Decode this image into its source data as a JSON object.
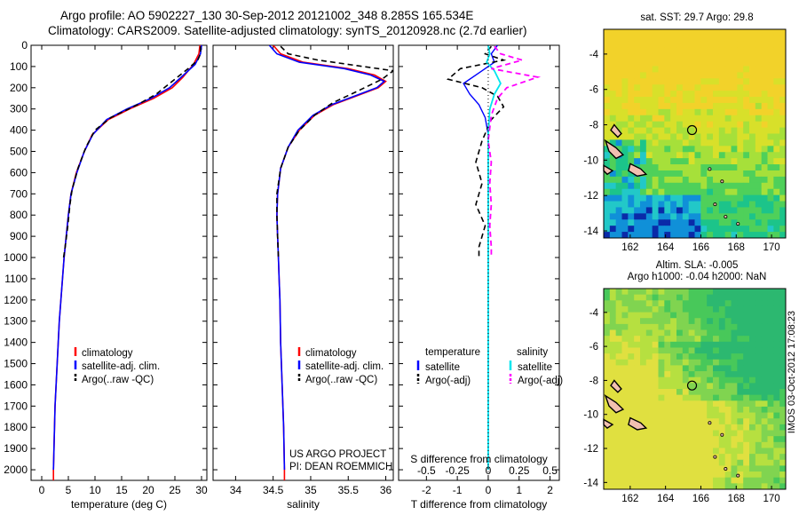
{
  "titles": {
    "line1": "Argo profile: AO 5902227_130 30-Sep-2012 20121002_348 8.285S 165.534E",
    "line2": "Climatology: CARS2009. Satellite-adjusted climatology: synTS_20120928.nc (2.7d earlier)"
  },
  "map_titles": {
    "sst": "sat. SST: 29.7 Argo: 29.8",
    "sla1": "Altim. SLA: -0.005",
    "sla2": "Argo h1000: -0.04 h2000: NaN"
  },
  "stamp": "IMOS 03-Oct-2012 17:08:23",
  "colors": {
    "clim": "#ff0000",
    "sat": "#0000ff",
    "argo": "#000000",
    "sat_s": "#00e5ee",
    "argo_s": "#ff00ff"
  },
  "chart_data": [
    {
      "type": "line",
      "xlabel": "temperature (deg C)",
      "ylabel": "",
      "xlim": [
        -2,
        31
      ],
      "ylim": [
        2050,
        0
      ],
      "x_ticks": [
        0,
        5,
        10,
        15,
        20,
        25,
        30
      ],
      "y_ticks": [
        0,
        100,
        200,
        300,
        400,
        500,
        600,
        700,
        800,
        900,
        1000,
        1100,
        1200,
        1300,
        1400,
        1500,
        1600,
        1700,
        1800,
        1900,
        2000
      ],
      "legend": [
        "climatology",
        "satellite-adj. clim.",
        "Argo(..raw -QC)"
      ],
      "series": [
        {
          "name": "climatology",
          "points": [
            [
              29.7,
              0
            ],
            [
              29.5,
              40
            ],
            [
              28.5,
              90
            ],
            [
              26.5,
              150
            ],
            [
              24.5,
              200
            ],
            [
              21,
              250
            ],
            [
              16.5,
              300
            ],
            [
              12.5,
              350
            ],
            [
              9.5,
              420
            ],
            [
              8,
              500
            ],
            [
              6.5,
              600
            ],
            [
              5.5,
              700
            ],
            [
              5,
              800
            ],
            [
              4.6,
              900
            ],
            [
              4.2,
              1000
            ],
            [
              3.9,
              1100
            ],
            [
              3.6,
              1200
            ],
            [
              3.3,
              1300
            ],
            [
              3.1,
              1400
            ],
            [
              2.9,
              1500
            ],
            [
              2.7,
              1600
            ],
            [
              2.5,
              1700
            ],
            [
              2.4,
              1800
            ],
            [
              2.3,
              1900
            ],
            [
              2.2,
              2000
            ],
            [
              2.2,
              2050
            ]
          ]
        },
        {
          "name": "satellite-adj. clim.",
          "points": [
            [
              30,
              0
            ],
            [
              29.8,
              40
            ],
            [
              28.8,
              90
            ],
            [
              26.2,
              150
            ],
            [
              24,
              200
            ],
            [
              20.5,
              250
            ],
            [
              16,
              300
            ],
            [
              12.2,
              350
            ],
            [
              9.6,
              420
            ],
            [
              8,
              500
            ],
            [
              6.6,
              600
            ],
            [
              5.5,
              700
            ],
            [
              5,
              800
            ],
            [
              4.6,
              900
            ],
            [
              4.2,
              1000
            ],
            [
              3.9,
              1100
            ],
            [
              3.6,
              1200
            ],
            [
              3.3,
              1300
            ],
            [
              3.1,
              1400
            ],
            [
              2.9,
              1500
            ],
            [
              2.7,
              1600
            ],
            [
              2.5,
              1700
            ],
            [
              2.4,
              1800
            ],
            [
              2.3,
              1900
            ],
            [
              2.2,
              2000
            ]
          ]
        },
        {
          "name": "Argo(..raw -QC)",
          "points": [
            [
              29.8,
              5
            ],
            [
              29.8,
              40
            ],
            [
              29.3,
              70
            ],
            [
              27.5,
              110
            ],
            [
              24.5,
              170
            ],
            [
              21.5,
              230
            ],
            [
              18,
              280
            ],
            [
              13,
              340
            ],
            [
              10,
              400
            ],
            [
              8.3,
              480
            ],
            [
              6.8,
              580
            ],
            [
              5.7,
              680
            ],
            [
              5.3,
              750
            ],
            [
              4.9,
              850
            ],
            [
              4.4,
              950
            ],
            [
              4.1,
              1000
            ]
          ]
        }
      ]
    },
    {
      "type": "line",
      "xlabel": "salinity",
      "ylabel": "",
      "xlim": [
        33.7,
        36.1
      ],
      "ylim": [
        2050,
        0
      ],
      "x_ticks": [
        34,
        34.5,
        35,
        35.5,
        36
      ],
      "legend": [
        "climatology",
        "satellite-adj. clim.",
        "Argo(..raw -QC)"
      ],
      "annotation": [
        "US ARGO PROJECT",
        "PI: DEAN ROEMMICH"
      ],
      "series": [
        {
          "name": "climatology",
          "points": [
            [
              34.5,
              0
            ],
            [
              34.6,
              40
            ],
            [
              34.9,
              80
            ],
            [
              35.5,
              110
            ],
            [
              35.85,
              140
            ],
            [
              36,
              170
            ],
            [
              35.9,
              200
            ],
            [
              35.6,
              240
            ],
            [
              35.3,
              280
            ],
            [
              35.05,
              330
            ],
            [
              34.85,
              400
            ],
            [
              34.7,
              480
            ],
            [
              34.6,
              580
            ],
            [
              34.56,
              700
            ],
            [
              34.55,
              800
            ],
            [
              34.56,
              900
            ],
            [
              34.57,
              1000
            ],
            [
              34.58,
              1100
            ],
            [
              34.59,
              1200
            ],
            [
              34.6,
              1400
            ],
            [
              34.62,
              1600
            ],
            [
              34.64,
              1800
            ],
            [
              34.65,
              2000
            ],
            [
              34.65,
              2050
            ]
          ]
        },
        {
          "name": "satellite-adj. clim.",
          "points": [
            [
              34.45,
              0
            ],
            [
              34.55,
              40
            ],
            [
              34.85,
              80
            ],
            [
              35.45,
              110
            ],
            [
              35.8,
              140
            ],
            [
              35.98,
              170
            ],
            [
              35.88,
              200
            ],
            [
              35.58,
              240
            ],
            [
              35.28,
              280
            ],
            [
              35.03,
              330
            ],
            [
              34.83,
              400
            ],
            [
              34.7,
              480
            ],
            [
              34.6,
              580
            ],
            [
              34.56,
              700
            ],
            [
              34.55,
              800
            ],
            [
              34.56,
              900
            ],
            [
              34.57,
              1000
            ],
            [
              34.58,
              1100
            ],
            [
              34.59,
              1200
            ],
            [
              34.6,
              1400
            ],
            [
              34.62,
              1600
            ],
            [
              34.64,
              1800
            ],
            [
              34.65,
              2000
            ]
          ]
        },
        {
          "name": "Argo(..raw -QC)",
          "points": [
            [
              34.6,
              5
            ],
            [
              34.7,
              40
            ],
            [
              35.1,
              70
            ],
            [
              35.7,
              100
            ],
            [
              36.1,
              120
            ],
            [
              35.95,
              160
            ],
            [
              35.6,
              220
            ],
            [
              35.3,
              270
            ],
            [
              35.05,
              330
            ],
            [
              34.85,
              400
            ],
            [
              34.7,
              480
            ],
            [
              34.6,
              580
            ],
            [
              34.55,
              700
            ],
            [
              34.55,
              800
            ],
            [
              34.56,
              900
            ],
            [
              34.57,
              1000
            ]
          ]
        }
      ]
    },
    {
      "type": "line",
      "xlabel": "T difference from climatology",
      "xlabel2": "S difference from climatology",
      "xlim": [
        -2.9,
        2.3
      ],
      "ylim": [
        2050,
        0
      ],
      "x_ticks": [
        -2,
        -1,
        0,
        1,
        2
      ],
      "x2_ticks": [
        -0.5,
        -0.25,
        0,
        0.25,
        0.5
      ],
      "legend_headers": [
        "temperature",
        "salinity"
      ],
      "legend": [
        "satellite",
        "Argo(-adj)",
        "satellite",
        "Argo(-adj)"
      ],
      "series": [
        {
          "name": "satellite",
          "points": [
            [
              0.3,
              0
            ],
            [
              0.1,
              40
            ],
            [
              0.2,
              80
            ],
            [
              -0.2,
              120
            ],
            [
              -0.8,
              180
            ],
            [
              -0.6,
              230
            ],
            [
              -0.3,
              280
            ],
            [
              -0.1,
              340
            ],
            [
              0,
              420
            ],
            [
              0,
              600
            ],
            [
              0,
              800
            ],
            [
              0,
              1000
            ],
            [
              0,
              1200
            ],
            [
              0,
              1400
            ],
            [
              0,
              1600
            ],
            [
              0,
              1800
            ],
            [
              0,
              2000
            ]
          ]
        },
        {
          "name": "Argo(-adj)",
          "points": [
            [
              0.1,
              5
            ],
            [
              -0.1,
              40
            ],
            [
              0.5,
              70
            ],
            [
              -0.9,
              110
            ],
            [
              -1.3,
              160
            ],
            [
              -0.2,
              200
            ],
            [
              0.3,
              240
            ],
            [
              0.5,
              290
            ],
            [
              0.1,
              350
            ],
            [
              -0.2,
              450
            ],
            [
              -0.4,
              550
            ],
            [
              -0.2,
              650
            ],
            [
              -0.4,
              750
            ],
            [
              -0.1,
              850
            ],
            [
              -0.3,
              950
            ],
            [
              -0.3,
              1000
            ]
          ]
        },
        {
          "name": "satellite",
          "points": [
            [
              0,
              0
            ],
            [
              0.05,
              40
            ],
            [
              -0.05,
              80
            ],
            [
              0.2,
              120
            ],
            [
              0.4,
              180
            ],
            [
              0.2,
              230
            ],
            [
              0.05,
              300
            ],
            [
              0,
              420
            ],
            [
              0,
              600
            ],
            [
              0,
              800
            ],
            [
              0,
              1000
            ],
            [
              0,
              1200
            ],
            [
              0,
              1400
            ],
            [
              0,
              1600
            ],
            [
              0,
              1800
            ],
            [
              0,
              2000
            ]
          ]
        },
        {
          "name": "Argo(-adj)",
          "points": [
            [
              0.2,
              5
            ],
            [
              0.4,
              40
            ],
            [
              1.1,
              70
            ],
            [
              0.1,
              110
            ],
            [
              1.6,
              150
            ],
            [
              0.6,
              200
            ],
            [
              0.3,
              250
            ],
            [
              0.1,
              330
            ],
            [
              0,
              450
            ],
            [
              0.1,
              550
            ],
            [
              0.05,
              650
            ],
            [
              0.1,
              750
            ],
            [
              0.05,
              850
            ],
            [
              0.1,
              950
            ],
            [
              0.1,
              1000
            ]
          ]
        }
      ]
    },
    {
      "type": "heatmap",
      "title": "sat. SST: 29.7 Argo: 29.8",
      "xlim": [
        160.5,
        170.8
      ],
      "ylim": [
        -14.4,
        -2.6
      ],
      "x_ticks": [
        162,
        164,
        166,
        168,
        170
      ],
      "y_ticks": [
        -4,
        -6,
        -8,
        -10,
        -12,
        -14
      ],
      "marker": [
        165.5,
        -8.3
      ]
    },
    {
      "type": "heatmap",
      "title": "Altim. SLA: -0.005",
      "xlim": [
        160.5,
        170.8
      ],
      "ylim": [
        -14.4,
        -2.6
      ],
      "x_ticks": [
        162,
        164,
        166,
        168,
        170
      ],
      "y_ticks": [
        -4,
        -6,
        -8,
        -10,
        -12,
        -14
      ],
      "marker": [
        165.5,
        -8.3
      ]
    }
  ]
}
